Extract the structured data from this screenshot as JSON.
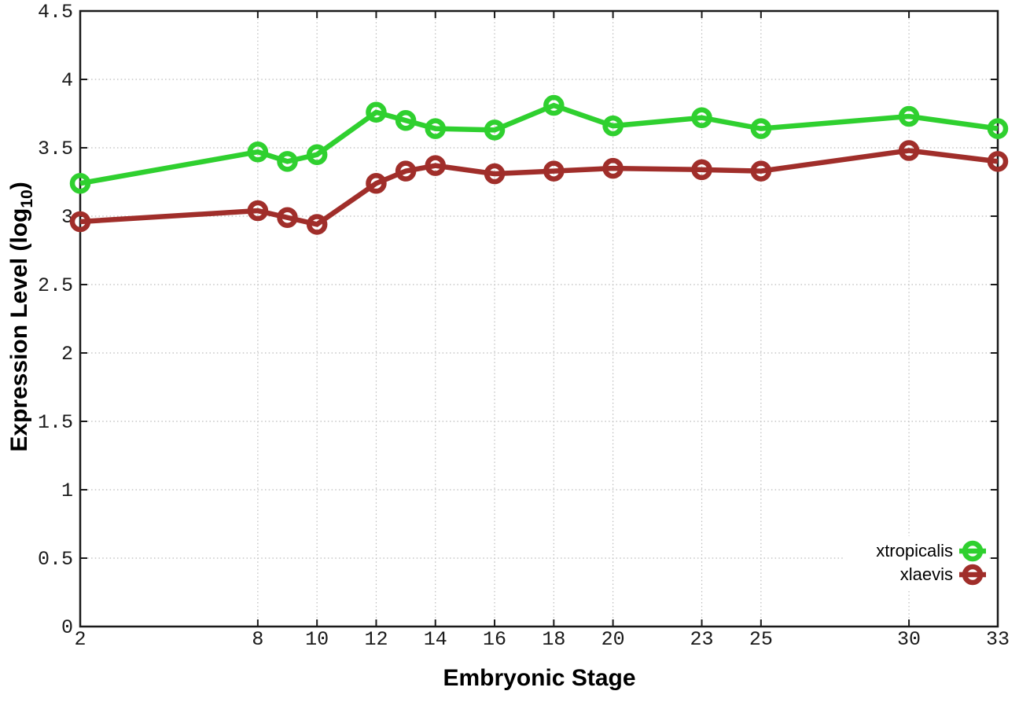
{
  "figure": {
    "background": "#ffffff"
  },
  "chart_data": {
    "type": "line",
    "title": "",
    "xlabel": "Embryonic Stage",
    "ylabel": "Expression Level (log10)",
    "ylabel_parts": {
      "prefix": "Expression Level (log",
      "sub": "10",
      "suffix": ")"
    },
    "xlim": [
      2,
      33
    ],
    "ylim": [
      0,
      4.5
    ],
    "grid": true,
    "grid_style": "dotted",
    "grid_color": "#bbbbbb",
    "axis_color": "#1a1a1a",
    "marker": "open-circle",
    "legend_position": "bottom-right",
    "xticks": [
      {
        "value": 2,
        "label": "2"
      },
      {
        "value": 8,
        "label": "8"
      },
      {
        "value": 10,
        "label": "10"
      },
      {
        "value": 12,
        "label": "12"
      },
      {
        "value": 14,
        "label": "14"
      },
      {
        "value": 16,
        "label": "16"
      },
      {
        "value": 18,
        "label": "18"
      },
      {
        "value": 20,
        "label": "20"
      },
      {
        "value": 23,
        "label": "23"
      },
      {
        "value": 25,
        "label": "25"
      },
      {
        "value": 30,
        "label": "30"
      },
      {
        "value": 33,
        "label": "33"
      }
    ],
    "yticks": [
      {
        "value": 0,
        "label": "0"
      },
      {
        "value": 0.5,
        "label": "0.5"
      },
      {
        "value": 1,
        "label": "1"
      },
      {
        "value": 1.5,
        "label": "1.5"
      },
      {
        "value": 2,
        "label": "2"
      },
      {
        "value": 2.5,
        "label": "2.5"
      },
      {
        "value": 3,
        "label": "3"
      },
      {
        "value": 3.5,
        "label": "3.5"
      },
      {
        "value": 4,
        "label": "4"
      },
      {
        "value": 4.5,
        "label": "4.5"
      }
    ],
    "x": [
      2,
      8,
      9,
      10,
      12,
      13,
      14,
      16,
      18,
      20,
      23,
      25,
      30,
      33
    ],
    "series": [
      {
        "name": "xtropicalis",
        "color": "#2fd02f",
        "values": [
          3.24,
          3.47,
          3.4,
          3.45,
          3.76,
          3.7,
          3.64,
          3.63,
          3.81,
          3.66,
          3.72,
          3.64,
          3.73,
          3.64
        ]
      },
      {
        "name": "xlaevis",
        "color": "#a02e2a",
        "values": [
          2.96,
          3.04,
          2.99,
          2.94,
          3.24,
          3.33,
          3.37,
          3.31,
          3.33,
          3.35,
          3.34,
          3.33,
          3.48,
          3.4
        ]
      }
    ]
  }
}
